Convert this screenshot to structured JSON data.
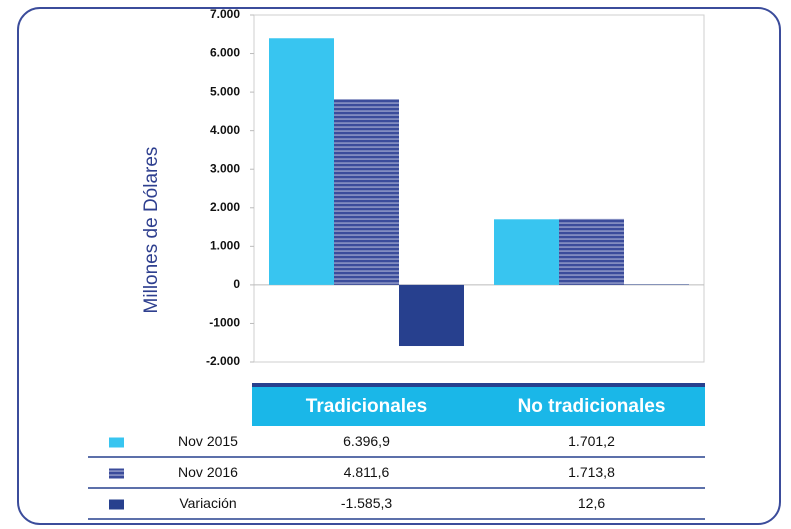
{
  "chart_data": {
    "type": "bar",
    "y_axis_label": "Millones de Dólares",
    "categories": [
      "Tradicionales",
      "No tradicionales"
    ],
    "series": [
      {
        "name": "Nov 2015",
        "color": "#38c5f0",
        "values": [
          6396.9,
          1701.2
        ],
        "value_labels": [
          "6.396,9",
          "1.701,2"
        ]
      },
      {
        "name": "Nov 2016",
        "color": "#3b4c9b",
        "pattern": "horizontal-stripes",
        "values": [
          4811.6,
          1713.8
        ],
        "value_labels": [
          "4.811,6",
          "1.713,8"
        ]
      },
      {
        "name": "Variación",
        "color": "#27408e",
        "values": [
          -1585.3,
          12.6
        ],
        "value_labels": [
          "-1.585,3",
          "12,6"
        ]
      }
    ],
    "ylim": [
      -2000,
      7000
    ],
    "yticks": [
      {
        "value": -2000,
        "label": "-2.000"
      },
      {
        "value": -1000,
        "label": "-1000"
      },
      0,
      {
        "value": 1000,
        "label": "1.000"
      },
      {
        "value": 2000,
        "label": "2.000"
      },
      {
        "value": 3000,
        "label": "3.000"
      },
      {
        "value": 4000,
        "label": "4.000"
      },
      {
        "value": 5000,
        "label": "5.000"
      },
      {
        "value": 6000,
        "label": "6.000"
      },
      {
        "value": 7000,
        "label": "7.000"
      }
    ]
  }
}
